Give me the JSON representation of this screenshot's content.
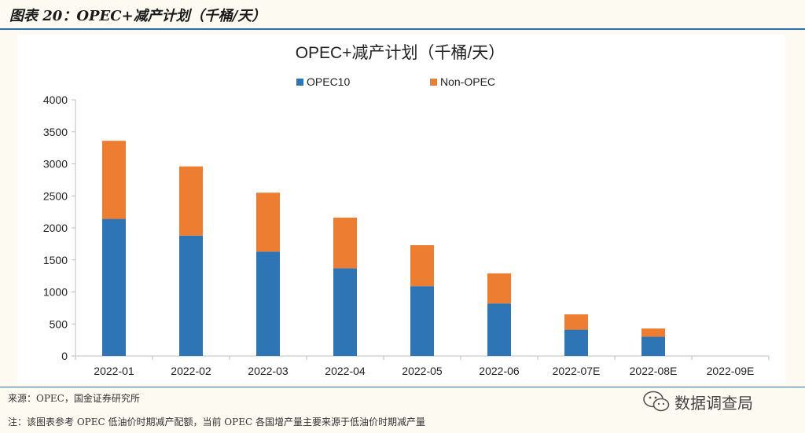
{
  "header": {
    "title": "图表 20：OPEC+减产计划（千桶/天）"
  },
  "chart_data": {
    "type": "bar",
    "stacked": true,
    "title": "OPEC+减产计划（千桶/天）",
    "xlabel": "",
    "ylabel": "",
    "ylim": [
      0,
      4000
    ],
    "yticks": [
      0,
      500,
      1000,
      1500,
      2000,
      2500,
      3000,
      3500,
      4000
    ],
    "grid": false,
    "legend_position": "top-center",
    "categories": [
      "2022-01",
      "2022-02",
      "2022-03",
      "2022-04",
      "2022-05",
      "2022-06",
      "2022-07E",
      "2022-08E",
      "2022-09E"
    ],
    "series": [
      {
        "name": "OPEC10",
        "color": "#2e75b6",
        "values": [
          2140,
          1880,
          1630,
          1370,
          1090,
          820,
          410,
          300,
          0
        ]
      },
      {
        "name": "Non-OPEC",
        "color": "#ed7d31",
        "values": [
          1220,
          1080,
          920,
          790,
          640,
          470,
          240,
          130,
          0
        ]
      }
    ]
  },
  "footer": {
    "source": "来源：OPEC，国金证券研究所",
    "note": "注：该图表参考 OPEC 低油价时期减产配额，当前 OPEC 各国增产量主要来源于低油价时期减产量",
    "watermark": "数据调查局",
    "watermark_icon": "wechat-icon"
  }
}
